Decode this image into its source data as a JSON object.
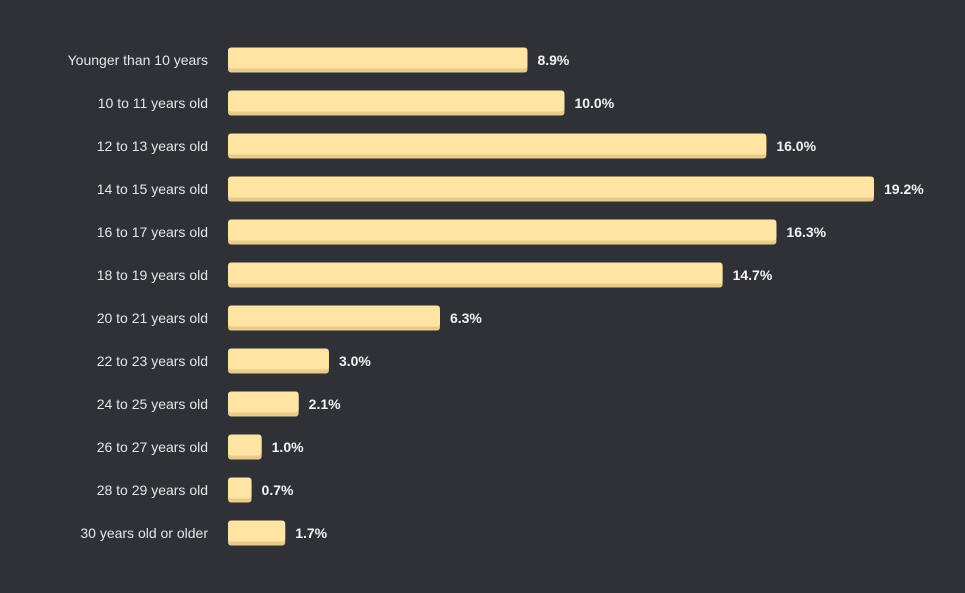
{
  "chart_data": {
    "type": "bar",
    "orientation": "horizontal",
    "categories": [
      "Younger than 10 years",
      "10 to 11 years old",
      "12 to 13 years old",
      "14 to 15 years old",
      "16 to 17 years old",
      "18 to 19 years old",
      "20 to 21 years old",
      "22 to 23 years old",
      "24 to 25 years old",
      "26 to 27 years old",
      "28 to 29 years old",
      "30 years old or older"
    ],
    "values": [
      8.9,
      10.0,
      16.0,
      19.2,
      16.3,
      14.7,
      6.3,
      3.0,
      2.1,
      1.0,
      0.7,
      1.7
    ],
    "value_labels": [
      "8.9%",
      "10.0%",
      "16.0%",
      "19.2%",
      "16.3%",
      "14.7%",
      "6.3%",
      "3.0%",
      "2.1%",
      "1.0%",
      "0.7%",
      "1.7%"
    ],
    "unit": "%",
    "xlim": [
      0,
      19.2
    ],
    "grid": false,
    "colors": {
      "background": "#2f3136",
      "bar": "#ffe4a3",
      "bar_shadow": "#e8cb8a",
      "category_text": "#e6e6e6",
      "value_text": "#f2f2f2"
    }
  }
}
